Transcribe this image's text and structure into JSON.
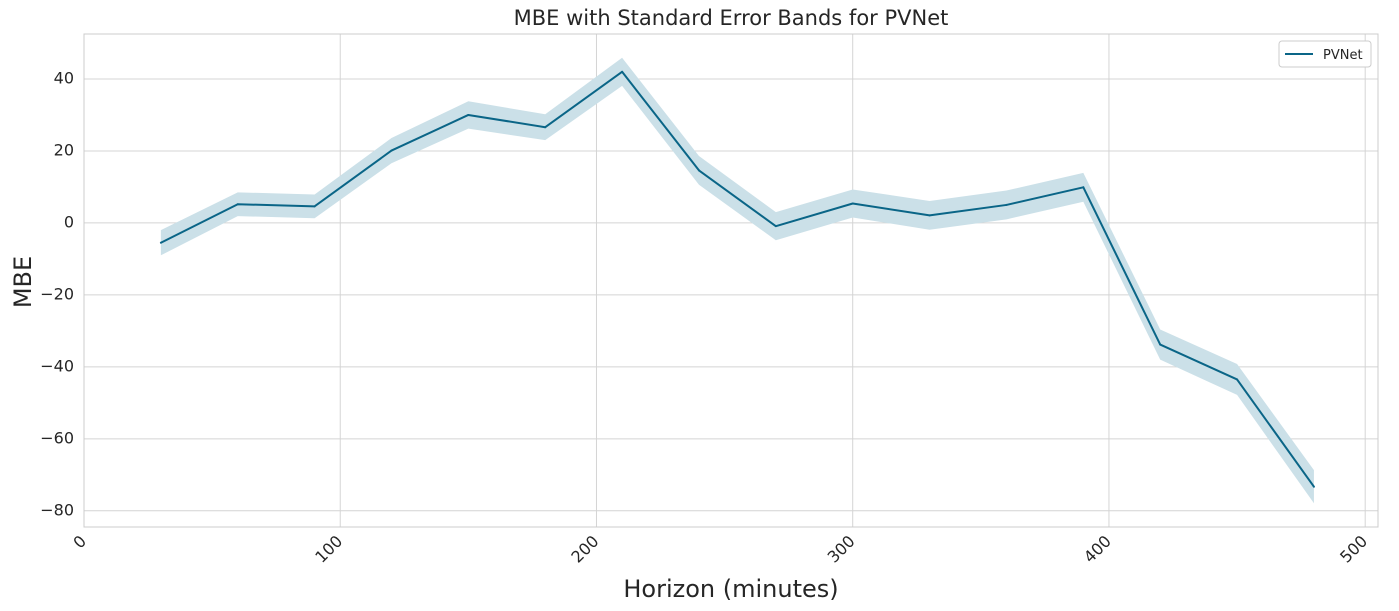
{
  "chart_data": {
    "type": "line",
    "title": "MBE with Standard Error Bands for PVNet",
    "xlabel": "Horizon (minutes)",
    "ylabel": "MBE",
    "xlim": [
      0,
      505
    ],
    "ylim": [
      -84.5,
      52.5
    ],
    "xticks": [
      0,
      100,
      200,
      300,
      400,
      500
    ],
    "yticks": [
      -80,
      -60,
      -40,
      -20,
      0,
      20,
      40
    ],
    "grid": true,
    "legend_position": "top-right",
    "colors": {
      "line": "#0a6587",
      "band": "#cbe0e8",
      "grid": "#d4d4d4",
      "spine": "#cccccc"
    },
    "series": [
      {
        "name": "PVNet",
        "x": [
          30,
          60,
          90,
          120,
          150,
          180,
          210,
          240,
          270,
          300,
          330,
          360,
          390,
          420,
          450,
          480
        ],
        "y": [
          -5.5,
          5.2,
          4.6,
          20.1,
          30.0,
          26.6,
          42.0,
          14.6,
          -0.9,
          5.4,
          2.1,
          5.0,
          9.9,
          -33.8,
          -43.5,
          -73.3
        ],
        "band_halfwidth": [
          3.5,
          3.3,
          3.3,
          3.5,
          3.8,
          3.6,
          3.9,
          4.0,
          3.9,
          3.9,
          4.0,
          4.0,
          4.0,
          4.2,
          4.3,
          4.6
        ]
      }
    ]
  }
}
